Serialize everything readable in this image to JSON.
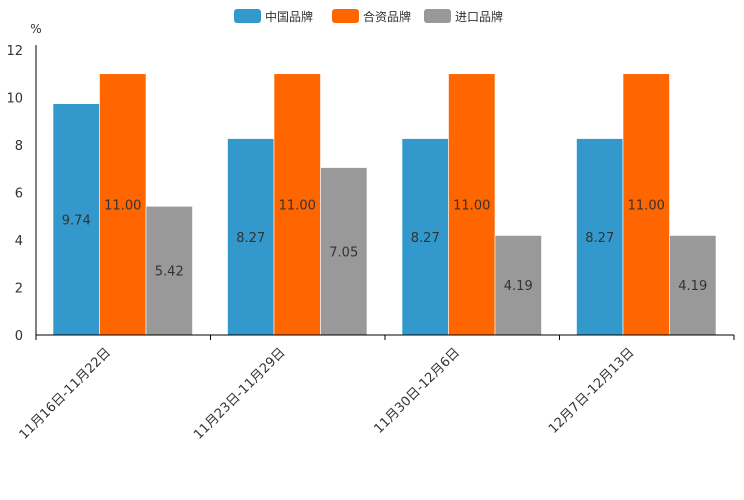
{
  "chart_data": {
    "type": "bar",
    "title": "",
    "xlabel": "",
    "ylabel": "%",
    "ylim": [
      0,
      12
    ],
    "yticks": [
      0,
      2,
      4,
      6,
      8,
      10,
      12
    ],
    "categories": [
      "11月16日-11月22日",
      "11月23日-11月29日",
      "11月30日-12月6日",
      "12月7日-12月13日"
    ],
    "series": [
      {
        "name": "中国品牌",
        "color": "#3399cc",
        "values": [
          9.74,
          8.27,
          8.27,
          8.27
        ],
        "labels": [
          "9.74",
          "8.27",
          "8.27",
          "8.27"
        ]
      },
      {
        "name": "合资品牌",
        "color": "#ff6600",
        "values": [
          11.0,
          11.0,
          11.0,
          11.0
        ],
        "labels": [
          "11.00",
          "11.00",
          "11.00",
          "11.00"
        ]
      },
      {
        "name": "进口品牌",
        "color": "#999999",
        "values": [
          5.42,
          7.05,
          4.19,
          4.19
        ],
        "labels": [
          "5.42",
          "7.05",
          "4.19",
          "4.19"
        ]
      }
    ],
    "legend_position": "top-center",
    "grid": false
  }
}
